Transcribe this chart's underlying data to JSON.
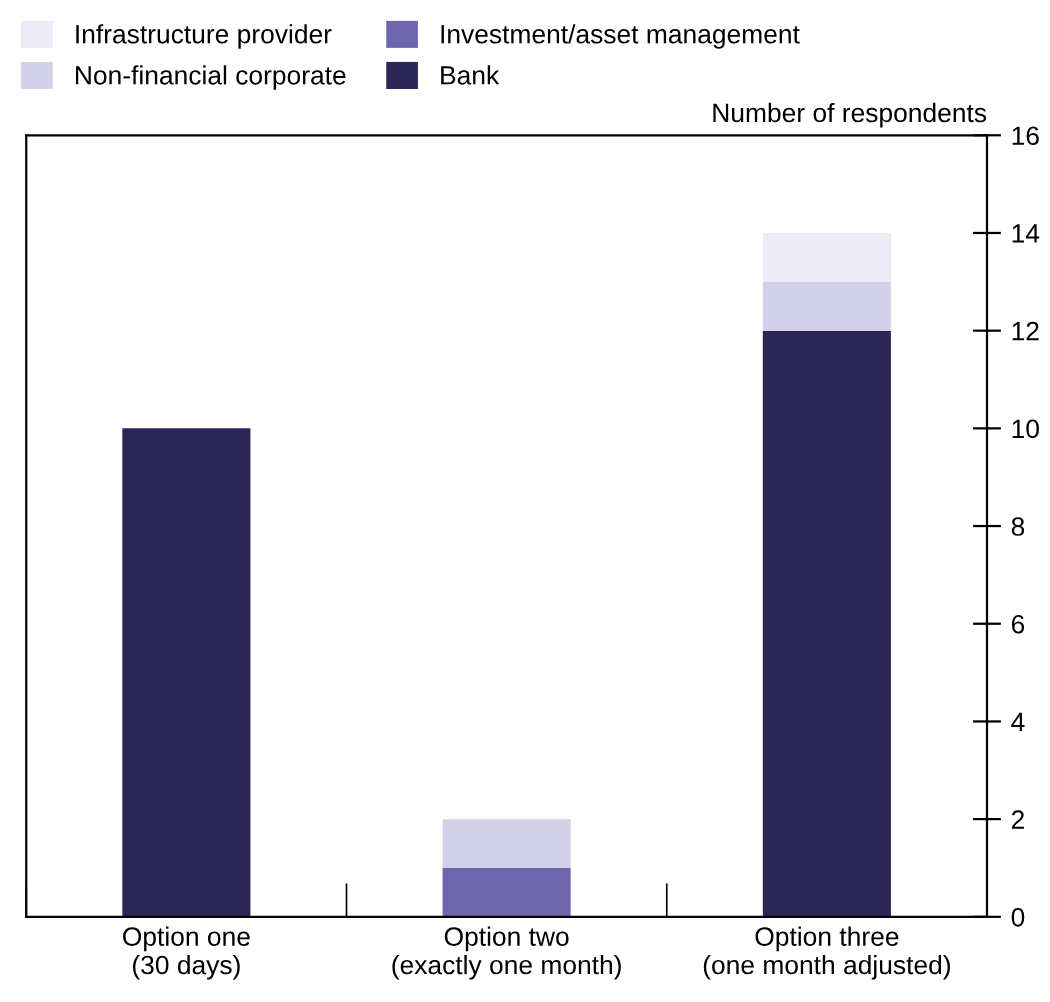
{
  "chart_data": {
    "type": "bar",
    "stacked": true,
    "ylabel": "Number of respondents",
    "categories": [
      "Option one\n(30 days)",
      "Option two\n(exactly one month)",
      "Option three\n(one month adjusted)"
    ],
    "series": [
      {
        "name": "Bank",
        "color": "#2b2656",
        "values": [
          10,
          0,
          12
        ]
      },
      {
        "name": "Investment/asset management",
        "color": "#6e67ad",
        "values": [
          0,
          1,
          0
        ]
      },
      {
        "name": "Non-financial corporate",
        "color": "#d3d1e7",
        "values": [
          0,
          1,
          1
        ]
      },
      {
        "name": "Infrastructure provider",
        "color": "#ecebf6",
        "values": [
          0,
          0,
          1
        ]
      }
    ],
    "ylim": [
      0,
      16
    ],
    "yticks": [
      0,
      2,
      4,
      6,
      8,
      10,
      12,
      14,
      16
    ],
    "grid": false,
    "legend": "top left"
  }
}
